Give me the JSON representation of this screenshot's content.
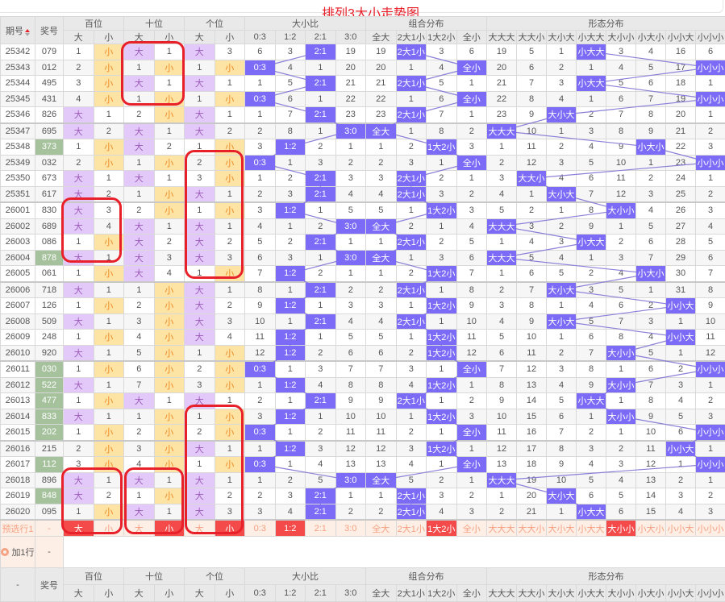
{
  "title": "排列3大小走势图",
  "header": {
    "issue_label": "期号",
    "number_label": "奖号",
    "groups": [
      {
        "label": "百位",
        "cols": [
          "大",
          "小"
        ]
      },
      {
        "label": "十位",
        "cols": [
          "大",
          "小"
        ]
      },
      {
        "label": "个位",
        "cols": [
          "大",
          "小"
        ]
      },
      {
        "label": "大小比",
        "cols": [
          "0:3",
          "1:2",
          "2:1",
          "3:0"
        ]
      },
      {
        "label": "组合分布",
        "cols": [
          "全大",
          "2大1小",
          "1大2小",
          "全小"
        ]
      },
      {
        "label": "形态分布",
        "cols": [
          "大大大",
          "大大小",
          "大小大",
          "小大大",
          "大小小",
          "小大小",
          "小小大",
          "小小小"
        ]
      }
    ]
  },
  "colors": {
    "big_hit": "#e2c9fa",
    "small_hit": "#fde4a4",
    "blue_hit": "#7b6bf6",
    "number_highlight": "#a5c29d",
    "preselect_selected": "#f54a4a",
    "annotation": "#e8202a"
  },
  "rows": [
    {
      "issue": "25342",
      "number": "079",
      "hl": false,
      "cells": [
        "1",
        "小",
        "大",
        "1",
        "大",
        "3",
        "6",
        "3",
        "2:1",
        "19",
        "19",
        "2大1小",
        "3",
        "6",
        "19",
        "5",
        "1",
        "小大大",
        "3",
        "4",
        "16",
        "6"
      ]
    },
    {
      "issue": "25343",
      "number": "012",
      "hl": false,
      "cells": [
        "2",
        "小",
        "1",
        "小",
        "1",
        "小",
        "0:3",
        "4",
        "1",
        "20",
        "20",
        "1",
        "4",
        "全小",
        "20",
        "6",
        "2",
        "1",
        "4",
        "5",
        "17",
        "小小小"
      ]
    },
    {
      "issue": "25344",
      "number": "495",
      "hl": false,
      "cells": [
        "3",
        "小",
        "大",
        "1",
        "大",
        "1",
        "1",
        "5",
        "2:1",
        "21",
        "21",
        "2大1小",
        "5",
        "1",
        "21",
        "7",
        "3",
        "小大大",
        "5",
        "6",
        "18",
        "1"
      ]
    },
    {
      "issue": "25345",
      "number": "431",
      "hl": false,
      "cells": [
        "4",
        "小",
        "1",
        "小",
        "1",
        "小",
        "0:3",
        "6",
        "1",
        "22",
        "22",
        "1",
        "6",
        "全小",
        "22",
        "8",
        "4",
        "1",
        "6",
        "7",
        "19",
        "小小小"
      ]
    },
    {
      "issue": "25346",
      "number": "826",
      "hl": false,
      "cells": [
        "大",
        "1",
        "2",
        "小",
        "大",
        "1",
        "1",
        "7",
        "2:1",
        "23",
        "23",
        "2大1小",
        "7",
        "1",
        "23",
        "9",
        "大小大",
        "2",
        "7",
        "8",
        "20",
        "1"
      ]
    },
    {
      "issue": "25347",
      "number": "695",
      "hl": false,
      "cells": [
        "大",
        "2",
        "大",
        "1",
        "大",
        "2",
        "2",
        "8",
        "1",
        "3:0",
        "全大",
        "1",
        "8",
        "2",
        "大大大",
        "10",
        "1",
        "3",
        "8",
        "9",
        "21",
        "2"
      ]
    },
    {
      "issue": "25348",
      "number": "373",
      "hl": true,
      "cells": [
        "1",
        "小",
        "大",
        "2",
        "1",
        "小",
        "3",
        "1:2",
        "2",
        "1",
        "1",
        "2",
        "1大2小",
        "3",
        "1",
        "11",
        "2",
        "4",
        "9",
        "小大小",
        "22",
        "3"
      ]
    },
    {
      "issue": "25349",
      "number": "032",
      "hl": false,
      "cells": [
        "2",
        "小",
        "1",
        "小",
        "2",
        "小",
        "0:3",
        "1",
        "3",
        "2",
        "2",
        "3",
        "1",
        "全小",
        "2",
        "12",
        "3",
        "5",
        "10",
        "1",
        "23",
        "小小小"
      ]
    },
    {
      "issue": "25350",
      "number": "673",
      "hl": false,
      "cells": [
        "大",
        "1",
        "大",
        "1",
        "3",
        "小",
        "1",
        "2",
        "2:1",
        "3",
        "3",
        "2大1小",
        "2",
        "1",
        "3",
        "大大小",
        "4",
        "6",
        "11",
        "2",
        "24",
        "1"
      ]
    },
    {
      "issue": "25351",
      "number": "617",
      "hl": false,
      "cells": [
        "大",
        "2",
        "1",
        "小",
        "大",
        "1",
        "2",
        "3",
        "2:1",
        "4",
        "4",
        "2大1小",
        "3",
        "2",
        "4",
        "1",
        "大小大",
        "7",
        "12",
        "3",
        "25",
        "2"
      ]
    },
    {
      "issue": "26001",
      "number": "830",
      "hl": false,
      "cells": [
        "大",
        "3",
        "2",
        "小",
        "1",
        "小",
        "3",
        "1:2",
        "1",
        "5",
        "5",
        "1",
        "1大2小",
        "3",
        "5",
        "2",
        "1",
        "8",
        "大小小",
        "4",
        "26",
        "3"
      ]
    },
    {
      "issue": "26002",
      "number": "689",
      "hl": false,
      "cells": [
        "大",
        "4",
        "大",
        "1",
        "大",
        "1",
        "4",
        "1",
        "2",
        "3:0",
        "全大",
        "2",
        "1",
        "4",
        "大大大",
        "3",
        "2",
        "9",
        "1",
        "5",
        "27",
        "4"
      ]
    },
    {
      "issue": "26003",
      "number": "086",
      "hl": false,
      "cells": [
        "1",
        "小",
        "大",
        "2",
        "大",
        "2",
        "5",
        "2",
        "2:1",
        "1",
        "1",
        "2大1小",
        "2",
        "5",
        "1",
        "4",
        "3",
        "小大大",
        "2",
        "6",
        "28",
        "5"
      ]
    },
    {
      "issue": "26004",
      "number": "878",
      "hl": true,
      "cells": [
        "大",
        "1",
        "大",
        "3",
        "大",
        "3",
        "6",
        "3",
        "1",
        "3:0",
        "全大",
        "1",
        "3",
        "6",
        "大大大",
        "5",
        "4",
        "1",
        "3",
        "7",
        "29",
        "6"
      ]
    },
    {
      "issue": "26005",
      "number": "061",
      "hl": false,
      "cells": [
        "1",
        "小",
        "大",
        "4",
        "1",
        "小",
        "7",
        "1:2",
        "2",
        "1",
        "1",
        "2",
        "1大2小",
        "7",
        "1",
        "6",
        "5",
        "2",
        "4",
        "小大小",
        "30",
        "7"
      ]
    },
    {
      "issue": "26006",
      "number": "718",
      "hl": false,
      "cells": [
        "大",
        "1",
        "1",
        "小",
        "大",
        "1",
        "8",
        "1",
        "2:1",
        "2",
        "2",
        "2大1小",
        "1",
        "8",
        "2",
        "7",
        "大小大",
        "3",
        "5",
        "1",
        "31",
        "8"
      ]
    },
    {
      "issue": "26007",
      "number": "126",
      "hl": false,
      "cells": [
        "1",
        "小",
        "2",
        "小",
        "大",
        "2",
        "9",
        "1:2",
        "1",
        "3",
        "3",
        "1",
        "1大2小",
        "9",
        "3",
        "8",
        "1",
        "4",
        "6",
        "2",
        "小小大",
        "9"
      ]
    },
    {
      "issue": "26008",
      "number": "509",
      "hl": false,
      "cells": [
        "大",
        "1",
        "3",
        "小",
        "大",
        "3",
        "10",
        "1",
        "2:1",
        "4",
        "4",
        "2大1小",
        "1",
        "10",
        "4",
        "9",
        "大小大",
        "5",
        "7",
        "3",
        "1",
        "10"
      ]
    },
    {
      "issue": "26009",
      "number": "248",
      "hl": false,
      "cells": [
        "1",
        "小",
        "4",
        "小",
        "大",
        "4",
        "11",
        "1:2",
        "1",
        "5",
        "5",
        "1",
        "1大2小",
        "11",
        "5",
        "10",
        "1",
        "6",
        "8",
        "4",
        "小小大",
        "11"
      ]
    },
    {
      "issue": "26010",
      "number": "920",
      "hl": false,
      "cells": [
        "大",
        "1",
        "5",
        "小",
        "1",
        "小",
        "12",
        "1:2",
        "2",
        "6",
        "6",
        "2",
        "1大2小",
        "12",
        "6",
        "11",
        "2",
        "7",
        "大小小",
        "5",
        "1",
        "12"
      ]
    },
    {
      "issue": "26011",
      "number": "030",
      "hl": true,
      "cells": [
        "1",
        "小",
        "6",
        "小",
        "2",
        "小",
        "0:3",
        "1",
        "3",
        "7",
        "7",
        "3",
        "1",
        "全小",
        "7",
        "12",
        "3",
        "8",
        "1",
        "6",
        "2",
        "小小小"
      ]
    },
    {
      "issue": "26012",
      "number": "522",
      "hl": true,
      "cells": [
        "大",
        "1",
        "7",
        "小",
        "3",
        "小",
        "1",
        "1:2",
        "4",
        "8",
        "8",
        "4",
        "1大2小",
        "1",
        "8",
        "13",
        "4",
        "9",
        "大小小",
        "7",
        "3",
        "1"
      ]
    },
    {
      "issue": "26013",
      "number": "477",
      "hl": true,
      "cells": [
        "1",
        "小",
        "大",
        "1",
        "大",
        "1",
        "2",
        "1",
        "2:1",
        "9",
        "9",
        "2大1小",
        "1",
        "2",
        "9",
        "14",
        "5",
        "小大大",
        "1",
        "8",
        "4",
        "2"
      ]
    },
    {
      "issue": "26014",
      "number": "833",
      "hl": true,
      "cells": [
        "大",
        "1",
        "1",
        "小",
        "1",
        "小",
        "3",
        "1:2",
        "1",
        "10",
        "10",
        "1",
        "1大2小",
        "3",
        "10",
        "15",
        "6",
        "1",
        "大小小",
        "9",
        "5",
        "3"
      ]
    },
    {
      "issue": "26015",
      "number": "202",
      "hl": true,
      "cells": [
        "1",
        "小",
        "2",
        "小",
        "2",
        "小",
        "0:3",
        "1",
        "2",
        "11",
        "11",
        "2",
        "1",
        "全小",
        "11",
        "16",
        "7",
        "2",
        "1",
        "10",
        "6",
        "小小小"
      ]
    },
    {
      "issue": "26016",
      "number": "215",
      "hl": false,
      "cells": [
        "2",
        "小",
        "3",
        "小",
        "大",
        "1",
        "1",
        "1:2",
        "3",
        "12",
        "12",
        "3",
        "1大2小",
        "1",
        "12",
        "17",
        "8",
        "3",
        "2",
        "11",
        "小小大",
        "1"
      ]
    },
    {
      "issue": "26017",
      "number": "112",
      "hl": true,
      "cells": [
        "3",
        "小",
        "4",
        "小",
        "1",
        "小",
        "0:3",
        "1",
        "4",
        "13",
        "13",
        "4",
        "1",
        "全小",
        "13",
        "18",
        "9",
        "4",
        "3",
        "12",
        "1",
        "小小小"
      ]
    },
    {
      "issue": "26018",
      "number": "896",
      "hl": false,
      "cells": [
        "大",
        "1",
        "大",
        "1",
        "大",
        "1",
        "1",
        "2",
        "5",
        "3:0",
        "全大",
        "5",
        "2",
        "1",
        "大大大",
        "19",
        "10",
        "5",
        "4",
        "13",
        "2",
        "1"
      ]
    },
    {
      "issue": "26019",
      "number": "848",
      "hl": true,
      "cells": [
        "大",
        "2",
        "1",
        "小",
        "大",
        "2",
        "2",
        "3",
        "2:1",
        "1",
        "1",
        "2大1小",
        "3",
        "2",
        "1",
        "20",
        "大小大",
        "6",
        "5",
        "14",
        "3",
        "2"
      ]
    },
    {
      "issue": "26020",
      "number": "095",
      "hl": false,
      "cells": [
        "1",
        "小",
        "大",
        "1",
        "大",
        "3",
        "3",
        "4",
        "2:1",
        "2",
        "2",
        "2大1小",
        "4",
        "3",
        "2",
        "21",
        "1",
        "小大大",
        "6",
        "15",
        "4",
        "3"
      ]
    }
  ],
  "preselect": {
    "label": "预选行1",
    "number": "-",
    "cells": [
      "大",
      "小",
      "大",
      "小",
      "大",
      "小",
      "0:3",
      "1:2",
      "2:1",
      "3:0",
      "全大",
      "2大1小",
      "1大2小",
      "全小",
      "大大大",
      "大大小",
      "大小大",
      "小大大",
      "大小小",
      "小大小",
      "小小大",
      "小小小"
    ],
    "selected": [
      0,
      3,
      5,
      7,
      12,
      18
    ]
  },
  "add_row": {
    "label": "加1行",
    "number": "-"
  },
  "footer_header": {
    "issue_label": "-",
    "number_label": "奖号"
  }
}
